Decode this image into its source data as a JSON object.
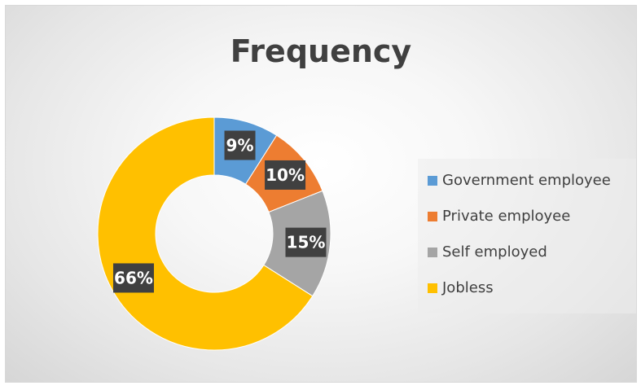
{
  "chart_data": {
    "type": "pie",
    "subtype": "donut",
    "title": "Frequency",
    "categories": [
      "Government employee",
      "Private employee",
      "Self employed",
      "Jobless"
    ],
    "values": [
      9,
      10,
      15,
      66
    ],
    "value_labels": [
      "9%",
      "10%",
      "15%",
      "66%"
    ],
    "colors": [
      "#5b9bd5",
      "#ed7d31",
      "#a5a5a5",
      "#ffc000"
    ],
    "legend_position": "right"
  }
}
